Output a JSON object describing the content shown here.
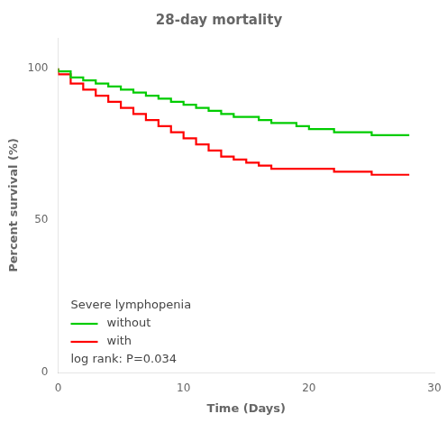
{
  "chart_data": {
    "type": "line",
    "line_style": "step",
    "title": "28-day mortality",
    "xlabel": "Time (Days)",
    "ylabel": "Percent survival (%)",
    "xlim": [
      0,
      30
    ],
    "ylim": [
      0,
      110
    ],
    "xticks": [
      0,
      10,
      20,
      30
    ],
    "yticks": [
      0,
      50,
      100
    ],
    "grid": false,
    "legend": "lower left",
    "legend_title": "Severe lymphopenia",
    "annotations": [
      {
        "text": "log rank: P=0.034"
      }
    ],
    "x": [
      0,
      1,
      2,
      3,
      4,
      5,
      6,
      7,
      8,
      9,
      10,
      11,
      12,
      13,
      14,
      15,
      16,
      17,
      18,
      19,
      20,
      21,
      22,
      23,
      24,
      25,
      26,
      27,
      28
    ],
    "series": [
      {
        "name": "without",
        "color": "#00CC00",
        "values": [
          100,
          99,
          97,
          96,
          95,
          94,
          93,
          92,
          91,
          90,
          89,
          88,
          87,
          86,
          85,
          84,
          84,
          83,
          82,
          82,
          81,
          80,
          80,
          79,
          79,
          79,
          78,
          78,
          78
        ]
      },
      {
        "name": "with",
        "color": "#FF0000",
        "values": [
          100,
          98,
          95,
          93,
          91,
          89,
          87,
          85,
          83,
          81,
          79,
          77,
          75,
          73,
          71,
          70,
          69,
          68,
          67,
          67,
          67,
          67,
          67,
          66,
          66,
          66,
          65,
          65,
          65
        ]
      }
    ]
  }
}
